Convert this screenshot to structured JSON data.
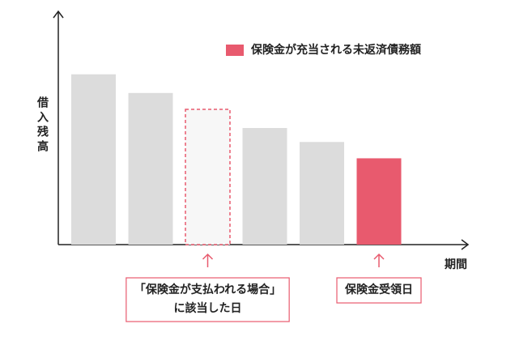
{
  "chart_data": {
    "type": "bar",
    "y_label": "借入残高",
    "x_label": "期間",
    "legend": {
      "label": "保険金が充当される未返済債務額",
      "color": "#e85a6e"
    },
    "categories": [
      null,
      null,
      null,
      null,
      null,
      null
    ],
    "values": [
      73,
      65,
      58,
      50,
      44,
      37
    ],
    "bar_colors": [
      "#dcdcdc",
      "#dcdcdc",
      "#f7f7f7",
      "#dcdcdc",
      "#dcdcdc",
      "#e85a6e"
    ],
    "dashed": [
      false,
      false,
      true,
      false,
      false,
      false
    ],
    "ylim": [
      0,
      100
    ],
    "annotations": [
      {
        "bar": 2,
        "lines": [
          "「保険金が支払われる場合」",
          "に該当した日"
        ]
      },
      {
        "bar": 5,
        "lines": [
          "保険金受領日"
        ]
      }
    ]
  }
}
